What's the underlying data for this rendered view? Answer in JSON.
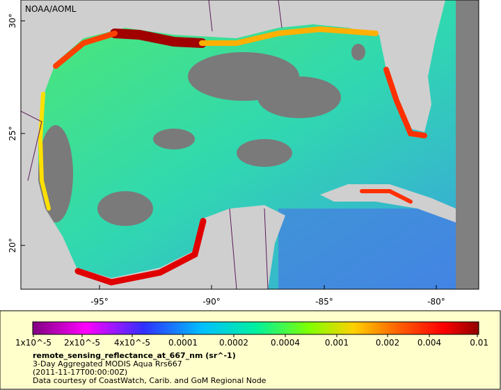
{
  "header": {
    "credit": "NOAA/AOML"
  },
  "axes": {
    "lat_labels": [
      "30°",
      "25°",
      "20°"
    ],
    "lon_labels": [
      "-95°",
      "-90°",
      "-85°",
      "-80°"
    ]
  },
  "legend": {
    "colorbar_labels": [
      "1x10^-5",
      "2x10^-5",
      "4x10^-5",
      "0.0001",
      "0.0002",
      "0.0004",
      "0.001",
      "0.002",
      "0.004",
      "0.01"
    ],
    "variable": "remote_sensing_reflectance_at_667_nm (sr^-1)",
    "description": "3-Day Aggregated MODIS Aqua Rrs667",
    "time": "(2011-11-17T00:00:00Z)",
    "source": "Data courtesy of CoastWatch, Carib. and GoM Regional Node"
  }
}
